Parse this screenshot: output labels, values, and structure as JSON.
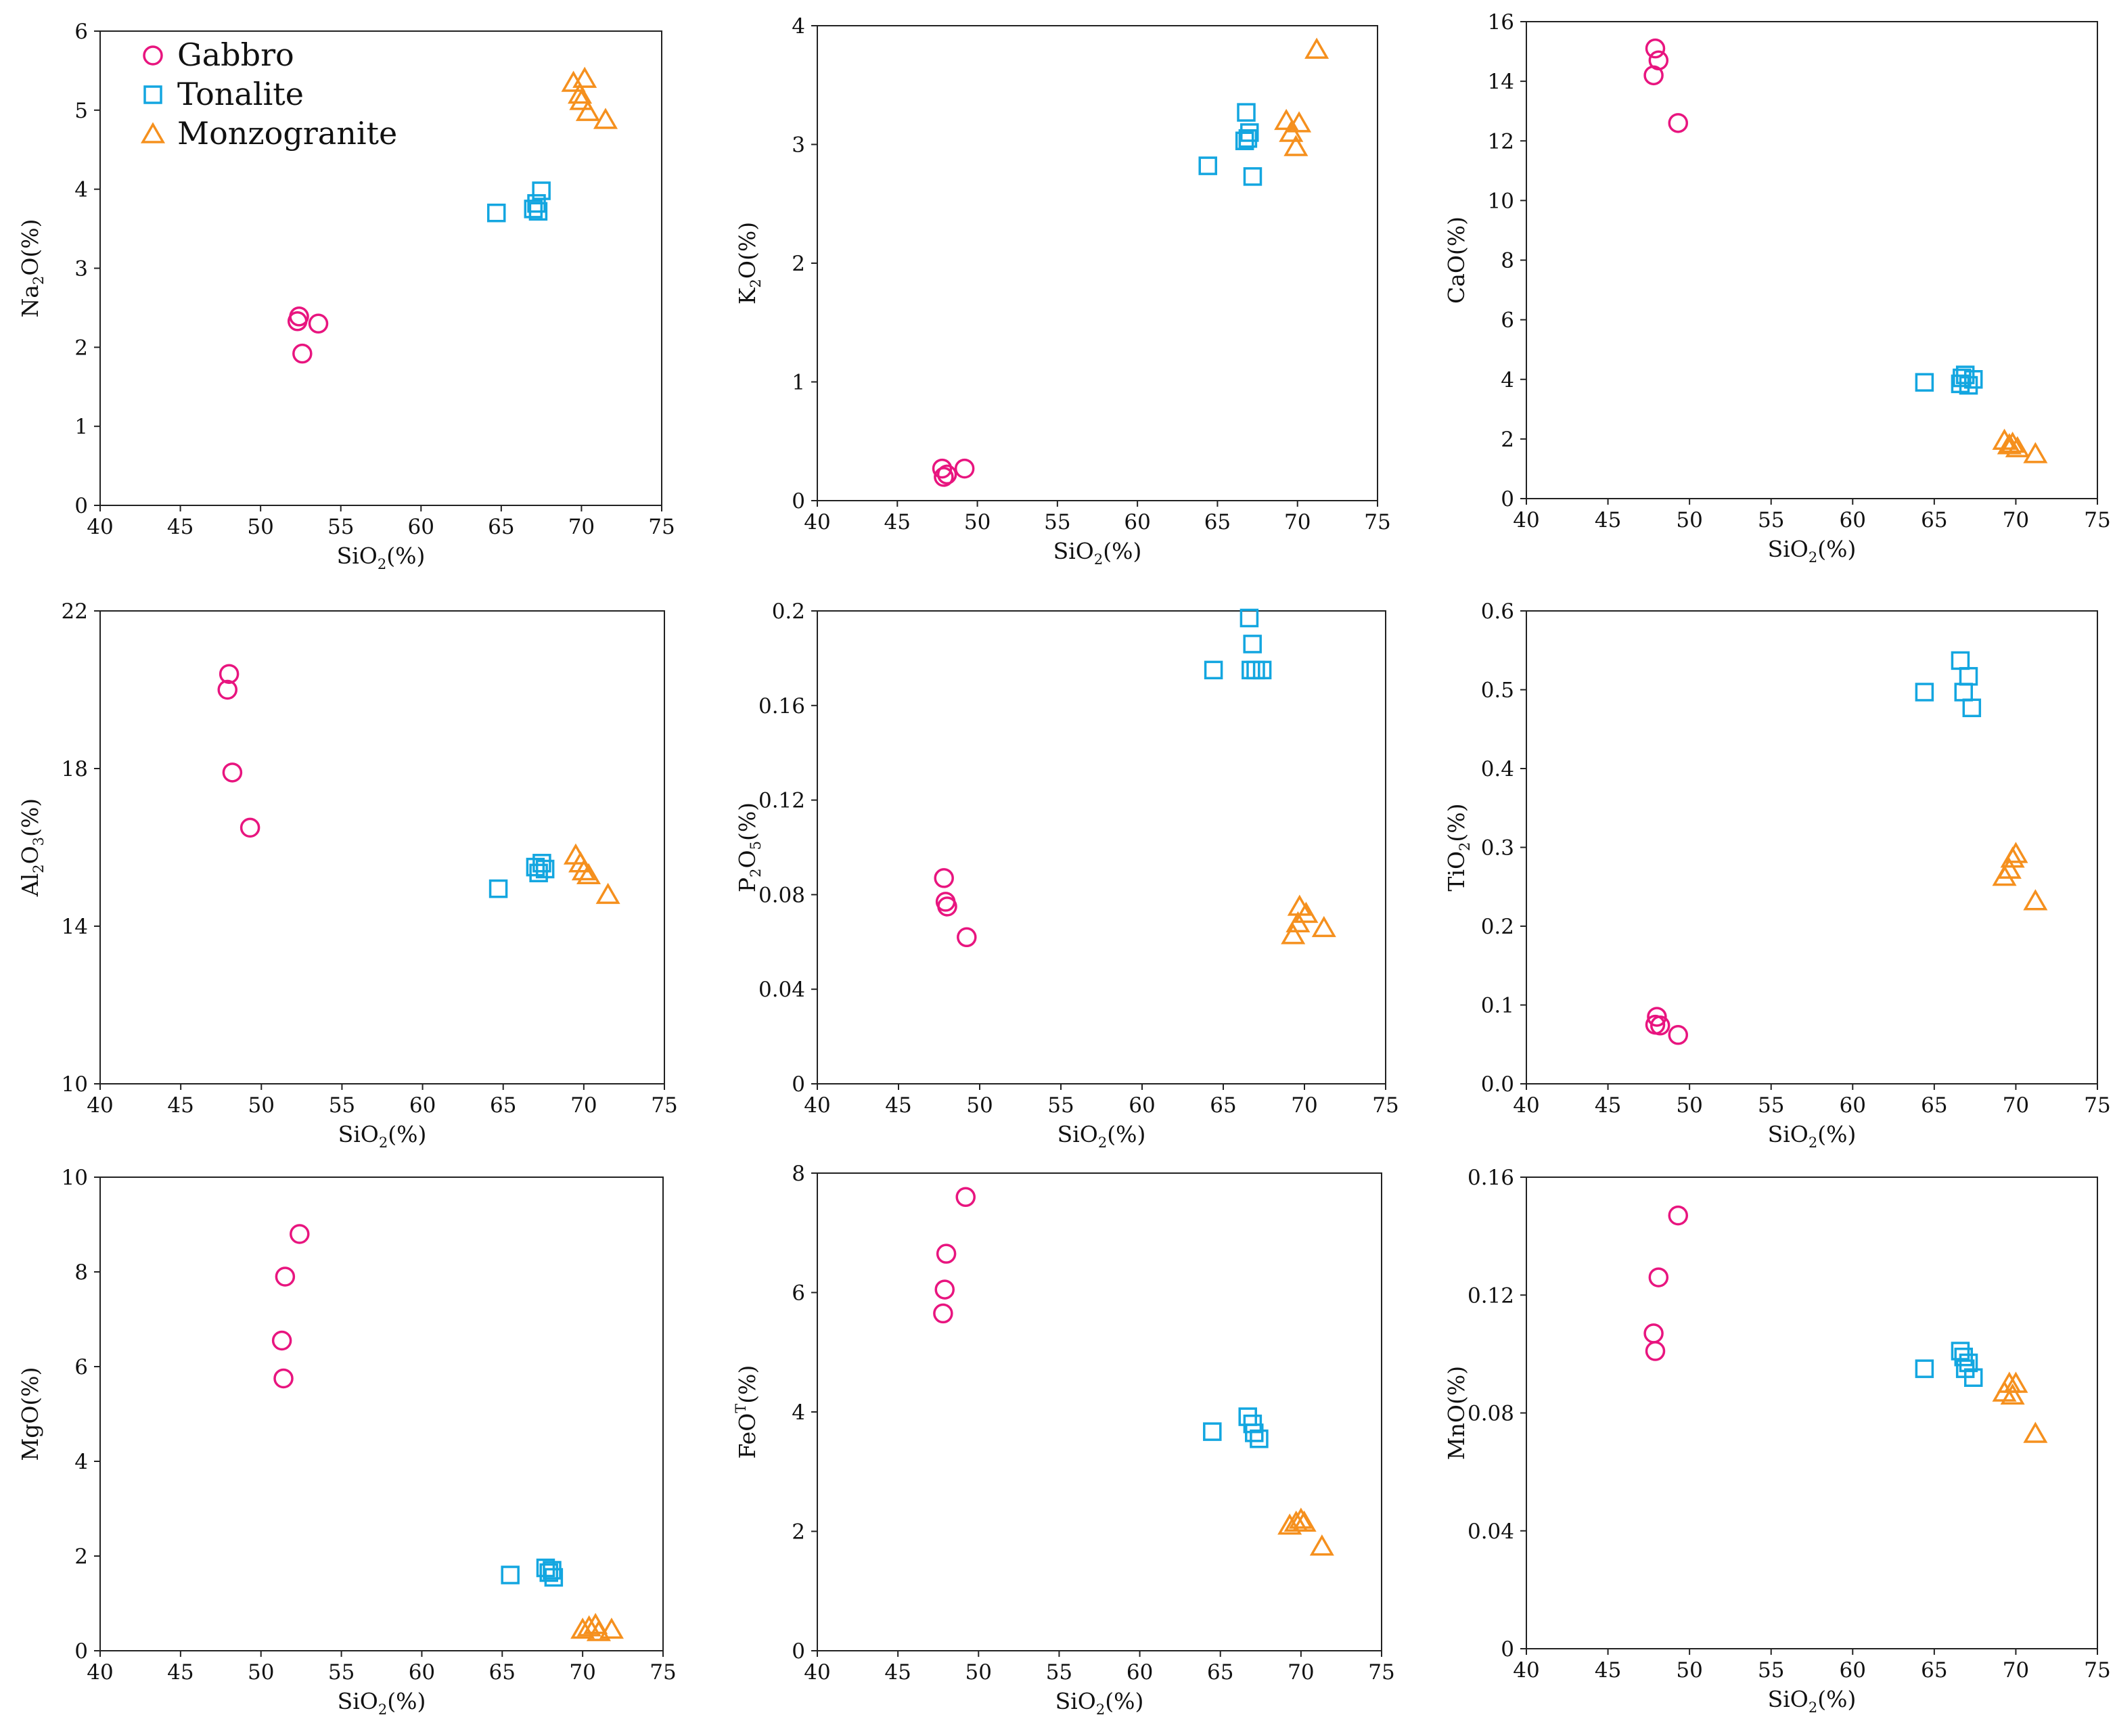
{
  "figure": {
    "legend": {
      "position": "top-left of first panel",
      "entries": [
        {
          "name": "Gabbro",
          "marker": "circle",
          "color": "#e8157f"
        },
        {
          "name": "Tonalite",
          "marker": "square",
          "color": "#13a6e0"
        },
        {
          "name": "Monzogranite",
          "marker": "triangle",
          "color": "#f5901e"
        }
      ]
    }
  },
  "chart_data": [
    {
      "type": "scatter",
      "xlabel": "SiO",
      "xsub": "2",
      "xpost": "(%)",
      "ylabel": "Na",
      "ysub": "2",
      "ypost": "O(%)",
      "xlim": [
        40,
        75
      ],
      "xticks": [
        "40",
        "45",
        "50",
        "55",
        "60",
        "65",
        "70",
        "75"
      ],
      "ylim": [
        0,
        6
      ],
      "yticks": [
        "0",
        "1",
        "2",
        "3",
        "4",
        "5",
        "6"
      ],
      "series": [
        {
          "name": "Gabbro",
          "points": [
            [
              52.3,
              2.33
            ],
            [
              52.4,
              2.39
            ],
            [
              53.6,
              2.3
            ],
            [
              52.6,
              1.92
            ]
          ]
        },
        {
          "name": "Tonalite",
          "points": [
            [
              64.7,
              3.7
            ],
            [
              67.0,
              3.75
            ],
            [
              67.2,
              3.82
            ],
            [
              67.3,
              3.72
            ],
            [
              67.5,
              3.98
            ]
          ]
        },
        {
          "name": "Monzogranite",
          "points": [
            [
              69.5,
              5.35
            ],
            [
              70.2,
              5.4
            ],
            [
              69.9,
              5.2
            ],
            [
              70.0,
              5.12
            ],
            [
              70.4,
              4.98
            ],
            [
              71.5,
              4.88
            ]
          ]
        }
      ]
    },
    {
      "type": "scatter",
      "xlabel": "SiO",
      "xsub": "2",
      "xpost": "(%)",
      "ylabel": "K",
      "ysub": "2",
      "ypost": "O(%)",
      "xlim": [
        40,
        75
      ],
      "xticks": [
        "40",
        "45",
        "50",
        "55",
        "60",
        "65",
        "70",
        "75"
      ],
      "ylim": [
        0,
        4
      ],
      "yticks": [
        "0",
        "1",
        "2",
        "3",
        "4"
      ],
      "series": [
        {
          "name": "Gabbro",
          "points": [
            [
              47.8,
              0.27
            ],
            [
              47.9,
              0.2
            ],
            [
              48.1,
              0.22
            ],
            [
              49.2,
              0.27
            ]
          ]
        },
        {
          "name": "Tonalite",
          "points": [
            [
              64.4,
              2.82
            ],
            [
              66.8,
              3.27
            ],
            [
              66.7,
              3.03
            ],
            [
              66.9,
              3.05
            ],
            [
              67.0,
              3.1
            ],
            [
              67.2,
              2.73
            ]
          ]
        },
        {
          "name": "Monzogranite",
          "points": [
            [
              69.3,
              3.2
            ],
            [
              69.6,
              3.1
            ],
            [
              70.1,
              3.18
            ],
            [
              69.9,
              2.98
            ],
            [
              71.2,
              3.8
            ]
          ]
        }
      ]
    },
    {
      "type": "scatter",
      "xlabel": "SiO",
      "xsub": "2",
      "xpost": "(%)",
      "ylabel": "CaO(%)",
      "ysub": "",
      "ypost": "",
      "xlim": [
        40,
        75
      ],
      "xticks": [
        "40",
        "45",
        "50",
        "55",
        "60",
        "65",
        "70",
        "75"
      ],
      "ylim": [
        0,
        16
      ],
      "yticks": [
        "0",
        "2",
        "4",
        "6",
        "8",
        "10",
        "12",
        "14",
        "16"
      ],
      "series": [
        {
          "name": "Gabbro",
          "points": [
            [
              47.9,
              15.1
            ],
            [
              48.1,
              14.7
            ],
            [
              47.8,
              14.2
            ],
            [
              49.3,
              12.6
            ]
          ]
        },
        {
          "name": "Tonalite",
          "points": [
            [
              64.4,
              3.9
            ],
            [
              66.6,
              3.85
            ],
            [
              66.7,
              4.05
            ],
            [
              66.9,
              4.15
            ],
            [
              67.1,
              3.8
            ],
            [
              67.4,
              4.0
            ]
          ]
        },
        {
          "name": "Monzogranite",
          "points": [
            [
              69.3,
              1.95
            ],
            [
              69.6,
              1.8
            ],
            [
              69.8,
              1.85
            ],
            [
              70.1,
              1.7
            ],
            [
              71.2,
              1.5
            ]
          ]
        }
      ]
    },
    {
      "type": "scatter",
      "xlabel": "SiO",
      "xsub": "2",
      "xpost": "(%)",
      "ylabel": "Al",
      "ysub": "2",
      "ysub2": "3",
      "ymid": "O",
      "ypost": "(%)",
      "xlim": [
        40,
        75
      ],
      "xticks": [
        "40",
        "45",
        "50",
        "55",
        "60",
        "65",
        "70",
        "75"
      ],
      "ylim": [
        10,
        22
      ],
      "yticks": [
        "10",
        "14",
        "18",
        "22"
      ],
      "series": [
        {
          "name": "Gabbro",
          "points": [
            [
              48.0,
              20.4
            ],
            [
              47.9,
              20.0
            ],
            [
              48.2,
              17.9
            ],
            [
              49.3,
              16.5
            ]
          ]
        },
        {
          "name": "Tonalite",
          "points": [
            [
              64.7,
              14.95
            ],
            [
              67.0,
              15.5
            ],
            [
              67.2,
              15.35
            ],
            [
              67.4,
              15.6
            ],
            [
              67.6,
              15.45
            ]
          ]
        },
        {
          "name": "Monzogranite",
          "points": [
            [
              69.5,
              15.8
            ],
            [
              69.8,
              15.6
            ],
            [
              70.0,
              15.4
            ],
            [
              70.3,
              15.3
            ],
            [
              71.5,
              14.8
            ]
          ]
        }
      ]
    },
    {
      "type": "scatter",
      "xlabel": "SiO",
      "xsub": "2",
      "xpost": "(%)",
      "ylabel": "P",
      "ysub": "2",
      "ysub2": "5",
      "ymid": "O",
      "ypost": "(%)",
      "xlim": [
        40,
        75
      ],
      "xticks": [
        "40",
        "45",
        "50",
        "55",
        "60",
        "65",
        "70",
        "75"
      ],
      "ylim": [
        0,
        0.2
      ],
      "yticks": [
        "0",
        "0.04",
        "0.08",
        "0.12",
        "0.16",
        "0.2"
      ],
      "series": [
        {
          "name": "Gabbro",
          "points": [
            [
              47.8,
              0.087
            ],
            [
              47.9,
              0.077
            ],
            [
              48.0,
              0.075
            ],
            [
              49.2,
              0.062
            ]
          ]
        },
        {
          "name": "Tonalite",
          "points": [
            [
              64.4,
              0.175
            ],
            [
              66.6,
              0.197
            ],
            [
              66.8,
              0.186
            ],
            [
              66.7,
              0.175
            ],
            [
              67.0,
              0.175
            ],
            [
              67.4,
              0.175
            ]
          ]
        },
        {
          "name": "Monzogranite",
          "points": [
            [
              69.3,
              0.063
            ],
            [
              69.6,
              0.068
            ],
            [
              69.7,
              0.075
            ],
            [
              70.1,
              0.072
            ],
            [
              71.2,
              0.066
            ]
          ]
        }
      ]
    },
    {
      "type": "scatter",
      "xlabel": "SiO",
      "xsub": "2",
      "xpost": "(%)",
      "ylabel": "TiO",
      "ysub": "2",
      "ypost": "(%)",
      "xlim": [
        40,
        75
      ],
      "xticks": [
        "40",
        "45",
        "50",
        "55",
        "60",
        "65",
        "70",
        "75"
      ],
      "ylim": [
        0,
        0.6
      ],
      "yticks": [
        "0.0",
        "0.1",
        "0.2",
        "0.3",
        "0.4",
        "0.5",
        "0.6"
      ],
      "series": [
        {
          "name": "Gabbro",
          "points": [
            [
              48.0,
              0.085
            ],
            [
              47.9,
              0.075
            ],
            [
              48.2,
              0.074
            ],
            [
              49.3,
              0.062
            ]
          ]
        },
        {
          "name": "Tonalite",
          "points": [
            [
              64.4,
              0.497
            ],
            [
              66.6,
              0.537
            ],
            [
              66.8,
              0.497
            ],
            [
              67.1,
              0.517
            ],
            [
              67.3,
              0.477
            ]
          ]
        },
        {
          "name": "Monzogranite",
          "points": [
            [
              69.3,
              0.263
            ],
            [
              69.6,
              0.272
            ],
            [
              69.8,
              0.286
            ],
            [
              70.0,
              0.292
            ],
            [
              71.2,
              0.232
            ]
          ]
        }
      ]
    },
    {
      "type": "scatter",
      "xlabel": "SiO",
      "xsub": "2",
      "xpost": "(%)",
      "ylabel": "MgO(%)",
      "ysub": "",
      "ypost": "",
      "xlim": [
        40,
        75
      ],
      "xticks": [
        "40",
        "45",
        "50",
        "55",
        "60",
        "65",
        "70",
        "75"
      ],
      "ylim": [
        0,
        10
      ],
      "yticks": [
        "0",
        "2",
        "4",
        "6",
        "8",
        "10"
      ],
      "series": [
        {
          "name": "Gabbro",
          "points": [
            [
              52.4,
              8.8
            ],
            [
              51.5,
              7.9
            ],
            [
              51.3,
              6.55
            ],
            [
              51.4,
              5.75
            ]
          ]
        },
        {
          "name": "Tonalite",
          "points": [
            [
              65.5,
              1.6
            ],
            [
              67.7,
              1.75
            ],
            [
              67.9,
              1.65
            ],
            [
              68.1,
              1.7
            ],
            [
              68.2,
              1.55
            ]
          ]
        },
        {
          "name": "Monzogranite",
          "points": [
            [
              70.0,
              0.45
            ],
            [
              70.4,
              0.5
            ],
            [
              70.8,
              0.55
            ],
            [
              71.0,
              0.4
            ],
            [
              71.8,
              0.45
            ]
          ]
        }
      ]
    },
    {
      "type": "scatter",
      "xlabel": "SiO",
      "xsub": "2",
      "xpost": "(%)",
      "ylabel": "FeO",
      "ysup": "T",
      "ysub": "",
      "ypost": "(%)",
      "xlim": [
        40,
        75
      ],
      "xticks": [
        "40",
        "45",
        "50",
        "55",
        "60",
        "65",
        "70",
        "75"
      ],
      "ylim": [
        0,
        8
      ],
      "yticks": [
        "0",
        "2",
        "4",
        "6",
        "8"
      ],
      "series": [
        {
          "name": "Gabbro",
          "points": [
            [
              49.2,
              7.6
            ],
            [
              48.0,
              6.65
            ],
            [
              47.9,
              6.05
            ],
            [
              47.8,
              5.65
            ]
          ]
        },
        {
          "name": "Tonalite",
          "points": [
            [
              64.5,
              3.67
            ],
            [
              66.7,
              3.92
            ],
            [
              67.0,
              3.8
            ],
            [
              67.1,
              3.65
            ],
            [
              67.4,
              3.55
            ]
          ]
        },
        {
          "name": "Monzogranite",
          "points": [
            [
              69.3,
              2.1
            ],
            [
              69.7,
              2.15
            ],
            [
              70.0,
              2.2
            ],
            [
              70.2,
              2.15
            ],
            [
              71.3,
              1.75
            ]
          ]
        }
      ]
    },
    {
      "type": "scatter",
      "xlabel": "SiO",
      "xsub": "2",
      "xpost": "(%)",
      "ylabel": "MnO(%)",
      "ysub": "",
      "ypost": "",
      "xlim": [
        40,
        75
      ],
      "xticks": [
        "40",
        "45",
        "50",
        "55",
        "60",
        "65",
        "70",
        "75"
      ],
      "ylim": [
        0,
        0.16
      ],
      "yticks": [
        "0",
        "0.04",
        "0.08",
        "0.12",
        "0.16"
      ],
      "series": [
        {
          "name": "Gabbro",
          "points": [
            [
              49.3,
              0.147
            ],
            [
              48.1,
              0.126
            ],
            [
              47.8,
              0.107
            ],
            [
              47.9,
              0.101
            ]
          ]
        },
        {
          "name": "Tonalite",
          "points": [
            [
              64.4,
              0.095
            ],
            [
              66.6,
              0.101
            ],
            [
              66.8,
              0.099
            ],
            [
              67.1,
              0.097
            ],
            [
              66.9,
              0.095
            ],
            [
              67.4,
              0.092
            ]
          ]
        },
        {
          "name": "Monzogranite",
          "points": [
            [
              69.3,
              0.087
            ],
            [
              69.6,
              0.09
            ],
            [
              70.0,
              0.09
            ],
            [
              69.8,
              0.086
            ],
            [
              71.2,
              0.073
            ]
          ]
        }
      ]
    }
  ]
}
